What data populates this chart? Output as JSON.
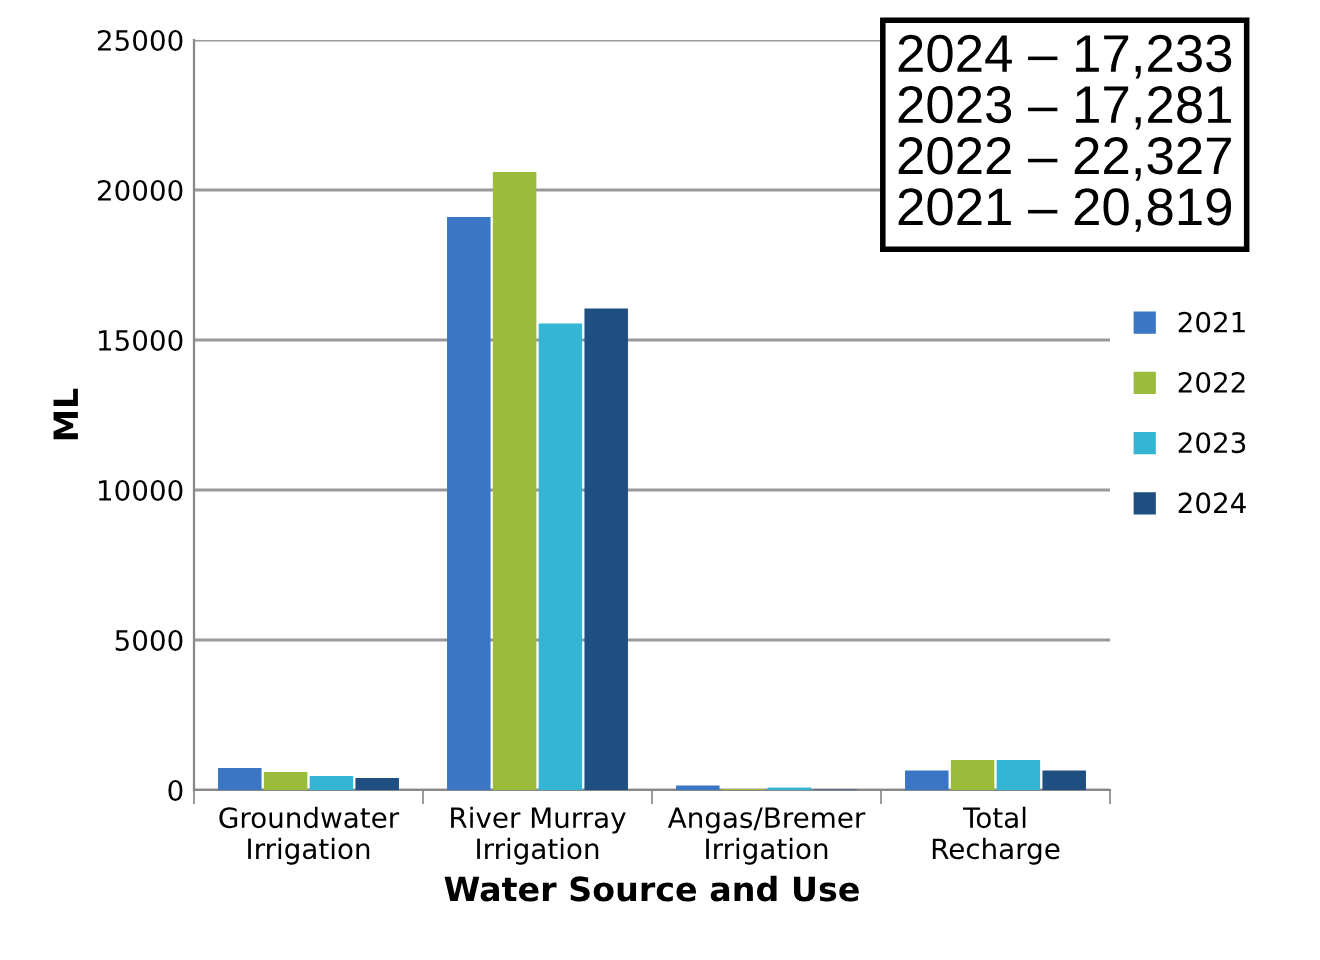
{
  "chart_data": {
    "type": "bar",
    "xlabel": "Water Source and Use",
    "ylabel": "ML",
    "categories": [
      "Groundwater\nIrrigation",
      "River Murray\nIrrigation",
      "Angas/Bremer\nIrrigation",
      "Total\nRecharge"
    ],
    "series": [
      {
        "name": "2021",
        "color": "#3a76c4",
        "values": [
          730,
          19100,
          150,
          650
        ]
      },
      {
        "name": "2022",
        "color": "#9bbb3b",
        "values": [
          600,
          20600,
          30,
          1000
        ]
      },
      {
        "name": "2023",
        "color": "#35b5d4",
        "values": [
          470,
          15550,
          80,
          1000
        ]
      },
      {
        "name": "2024",
        "color": "#1f4e80",
        "values": [
          400,
          16050,
          20,
          650
        ]
      }
    ],
    "ylim": [
      0,
      25000
    ],
    "yticks": [
      0,
      5000,
      10000,
      15000,
      20000,
      25000
    ],
    "grid": "y",
    "legend": "right",
    "annotations": [
      "2024 – 17,233",
      "2023 – 17,281",
      "2022 – 22,327",
      "2021 – 20,819"
    ]
  }
}
